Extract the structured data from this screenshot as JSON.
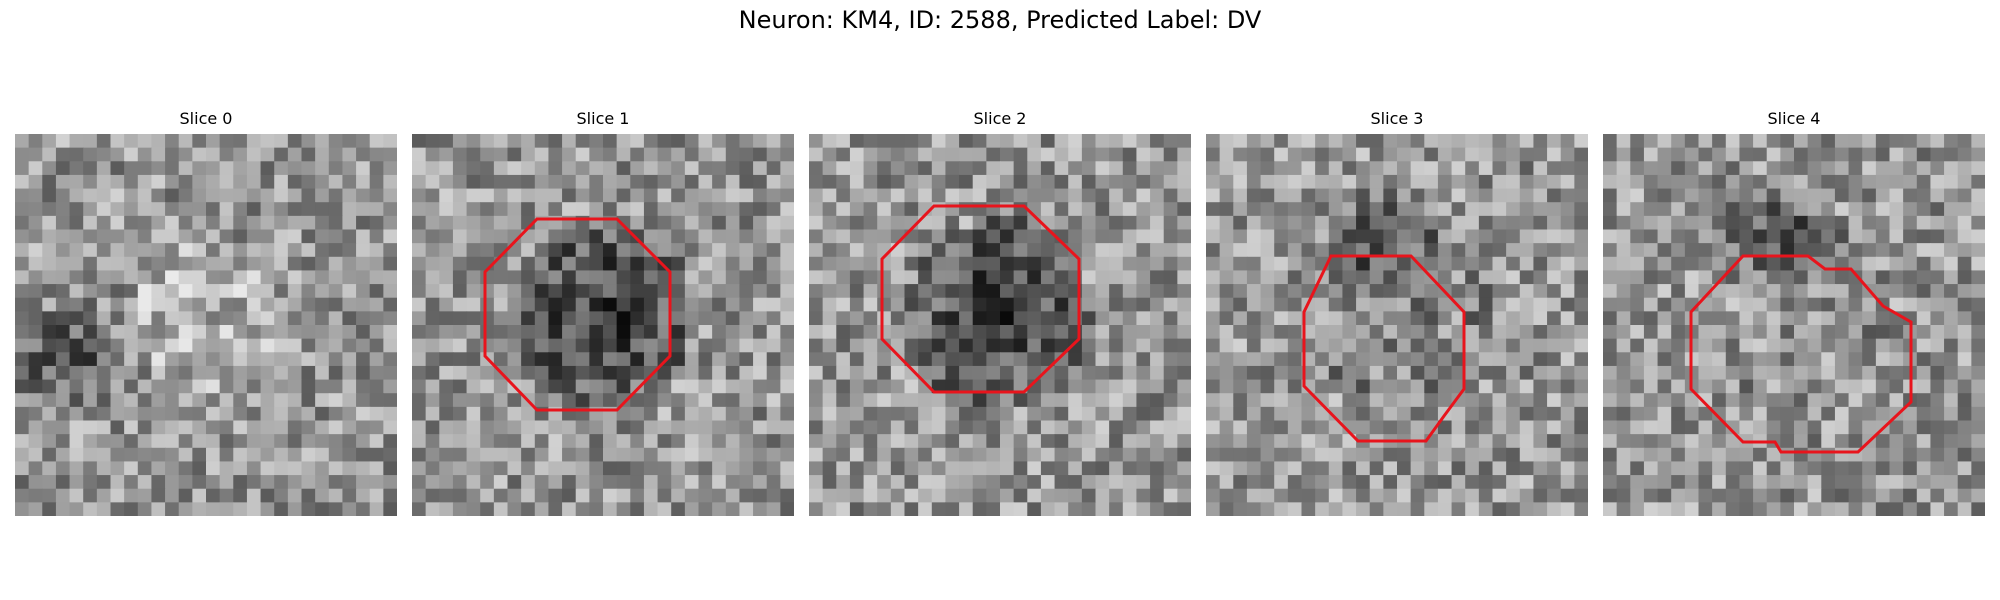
{
  "figure": {
    "title": "Neuron: KM4, ID: 2588, Predicted Label: DV",
    "outline_color": "#e8141c",
    "panels": [
      {
        "title": "Slice 0",
        "has_outline": false,
        "dark_center": 0,
        "dark_blob": "left"
      },
      {
        "title": "Slice 1",
        "has_outline": true,
        "dark_center": 1,
        "dark_blob": "none"
      },
      {
        "title": "Slice 2",
        "has_outline": true,
        "dark_center": 1,
        "dark_blob": "none"
      },
      {
        "title": "Slice 3",
        "has_outline": true,
        "dark_center": 0.4,
        "dark_blob": "top"
      },
      {
        "title": "Slice 4",
        "has_outline": true,
        "dark_center": 0.3,
        "dark_blob": "top"
      }
    ]
  }
}
